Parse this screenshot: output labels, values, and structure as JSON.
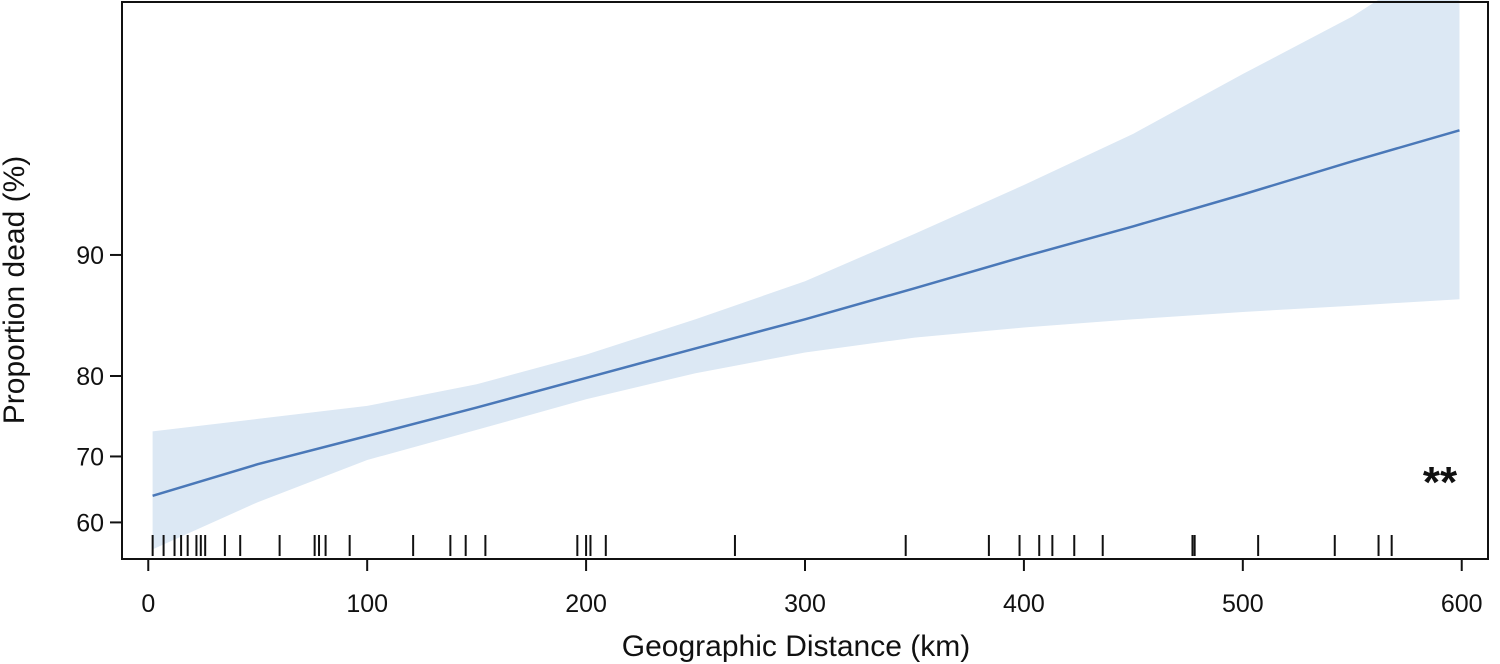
{
  "chart_data": {
    "type": "line",
    "title": "",
    "xlabel": "Geographic Distance (km)",
    "ylabel": "Proportion dead (%)",
    "xlim": [
      -12,
      612
    ],
    "ylim": [
      54,
      98
    ],
    "y_scale": "logit",
    "x_ticks": [
      0,
      100,
      200,
      300,
      400,
      500,
      600
    ],
    "y_ticks": [
      60,
      70,
      80,
      90
    ],
    "grid": false,
    "legend": "none",
    "annotation": "**",
    "colors": {
      "line": "#4a78b8",
      "band": "#dce8f4",
      "axis": "#111111"
    },
    "series": [
      {
        "x": [
          2,
          50,
          100,
          150,
          200,
          250,
          300,
          350,
          400,
          450,
          500,
          550,
          599
        ],
        "y": [
          64.2,
          68.9,
          72.8,
          76.4,
          79.8,
          82.8,
          85.4,
          87.8,
          89.9,
          91.6,
          93.1,
          94.4,
          95.4
        ],
        "lower": [
          55.6,
          63.2,
          69.5,
          73.6,
          77.4,
          80.3,
          82.4,
          83.8,
          84.7,
          85.4,
          86.0,
          86.5,
          87.0
        ],
        "upper": [
          73.4,
          75.0,
          76.6,
          79.1,
          82.2,
          85.4,
          88.3,
          91.2,
          93.5,
          95.3,
          96.8,
          97.8,
          98.6
        ]
      }
    ],
    "rug": [
      2,
      7,
      12,
      15,
      18,
      22,
      24,
      26,
      35,
      42,
      60,
      76,
      78,
      81,
      92,
      121,
      138,
      145,
      154,
      196,
      200,
      202,
      209,
      268,
      346,
      384,
      398,
      407,
      413,
      423,
      436,
      477,
      478,
      507,
      542,
      562,
      568
    ]
  }
}
